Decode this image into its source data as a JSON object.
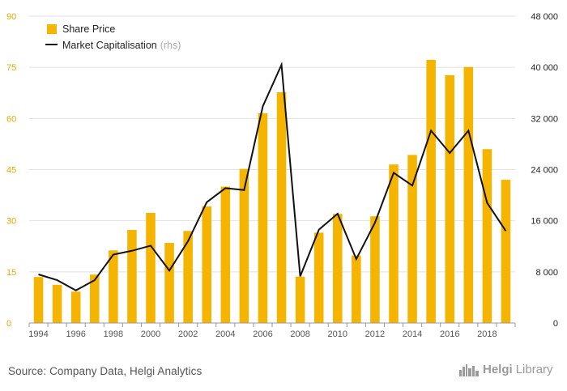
{
  "chart_data": {
    "type": "bar",
    "title": "",
    "x": [
      1994,
      1995,
      1996,
      1997,
      1998,
      1999,
      2000,
      2001,
      2002,
      2003,
      2004,
      2005,
      2006,
      2007,
      2008,
      2009,
      2010,
      2011,
      2012,
      2013,
      2014,
      2015,
      2016,
      2017,
      2018,
      2019
    ],
    "x_tick_labels": [
      "1994",
      "1996",
      "1998",
      "2000",
      "2002",
      "2004",
      "2006",
      "2008",
      "2010",
      "2012",
      "2014",
      "2016",
      "2018"
    ],
    "series": [
      {
        "name": "Share Price",
        "type": "bar",
        "axis": "left",
        "color": "#f5b400",
        "values": [
          13.5,
          11.2,
          9.2,
          14.2,
          21.3,
          27.3,
          32.3,
          23.5,
          27.0,
          34.2,
          40.0,
          45.2,
          61.5,
          67.7,
          13.6,
          26.5,
          32.0,
          19.8,
          31.3,
          46.5,
          49.3,
          77.2,
          72.7,
          75.1,
          51.0,
          42.0
        ]
      },
      {
        "name": "Market Capitalisation",
        "type": "line",
        "axis": "right",
        "color": "#111111",
        "values": [
          7600,
          6700,
          5100,
          6700,
          10700,
          11300,
          12100,
          8200,
          12800,
          18900,
          21100,
          20800,
          33900,
          40400,
          7300,
          14600,
          17100,
          10000,
          15700,
          23500,
          21500,
          30100,
          26600,
          30100,
          18800,
          14400
        ]
      }
    ],
    "legend": [
      {
        "label": "Share Price",
        "suffix": ""
      },
      {
        "label": "Market Capitalisation",
        "suffix": "(rhs)"
      }
    ],
    "legend_position": "top-left",
    "y_left": {
      "ylim": [
        0,
        90
      ],
      "ticks": [
        "0",
        "15",
        "30",
        "45",
        "60",
        "75",
        "90"
      ]
    },
    "y_right": {
      "ylim": [
        0,
        48000
      ],
      "ticks": [
        "0",
        "8 000",
        "16 000",
        "24 000",
        "32 000",
        "40 000",
        "48 000"
      ]
    },
    "grid": "horizontal",
    "colors": {
      "grid": "#e2e2e2",
      "left_tick": "#e6a800",
      "right_tick": "#222222"
    }
  },
  "footer": {
    "source": "Source: Company Data, Helgi Analytics",
    "logo_a": "Helgi",
    "logo_b": "Library"
  }
}
